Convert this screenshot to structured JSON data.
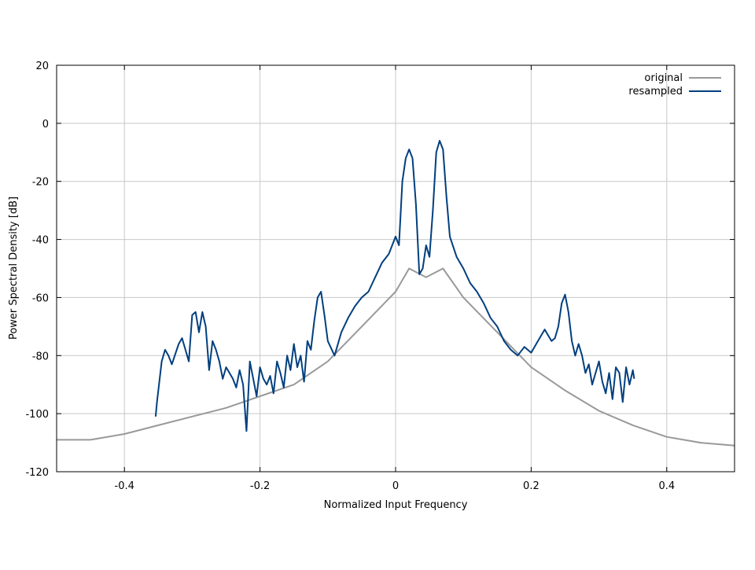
{
  "chart_data": {
    "type": "line",
    "title": "",
    "xlabel": "Normalized Input Frequency",
    "ylabel": "Power Spectral Density [dB]",
    "xlim": [
      -0.5,
      0.5
    ],
    "ylim": [
      -120,
      20
    ],
    "xticks": [
      -0.4,
      -0.2,
      0,
      0.2,
      0.4
    ],
    "xtick_labels": [
      "-0.4",
      "-0.2",
      "0",
      "0.2",
      "0.4"
    ],
    "yticks": [
      -120,
      -100,
      -80,
      -60,
      -40,
      -20,
      0,
      20
    ],
    "ytick_labels": [
      "-120",
      "-100",
      "-80",
      "-60",
      "-40",
      "-20",
      "0",
      "20"
    ],
    "grid": true,
    "legend_position": "top-right",
    "series": [
      {
        "name": "original",
        "color": "#999999",
        "x": [
          -0.5,
          -0.45,
          -0.4,
          -0.35,
          -0.3,
          -0.25,
          -0.2,
          -0.15,
          -0.1,
          -0.05,
          0.0,
          0.02,
          0.045,
          0.07,
          0.1,
          0.15,
          0.2,
          0.25,
          0.3,
          0.35,
          0.4,
          0.45,
          0.5
        ],
        "y": [
          -109,
          -109,
          -107,
          -104,
          -101,
          -98,
          -94,
          -90,
          -82,
          -70,
          -58,
          -50,
          -53,
          -50,
          -60,
          -72,
          -84,
          -92,
          -99,
          -104,
          -108,
          -110,
          -111
        ]
      },
      {
        "name": "resampled",
        "color": "#003f7f",
        "x": [
          -0.354,
          -0.352,
          -0.345,
          -0.34,
          -0.335,
          -0.33,
          -0.32,
          -0.315,
          -0.31,
          -0.305,
          -0.3,
          -0.295,
          -0.29,
          -0.285,
          -0.28,
          -0.275,
          -0.27,
          -0.265,
          -0.26,
          -0.255,
          -0.25,
          -0.245,
          -0.24,
          -0.235,
          -0.23,
          -0.225,
          -0.22,
          -0.215,
          -0.21,
          -0.205,
          -0.2,
          -0.195,
          -0.19,
          -0.185,
          -0.18,
          -0.175,
          -0.17,
          -0.165,
          -0.16,
          -0.155,
          -0.15,
          -0.145,
          -0.14,
          -0.135,
          -0.13,
          -0.125,
          -0.12,
          -0.115,
          -0.11,
          -0.105,
          -0.1,
          -0.09,
          -0.08,
          -0.07,
          -0.06,
          -0.05,
          -0.04,
          -0.03,
          -0.02,
          -0.01,
          0.0,
          0.005,
          0.01,
          0.015,
          0.02,
          0.025,
          0.03,
          0.035,
          0.04,
          0.045,
          0.05,
          0.055,
          0.06,
          0.065,
          0.07,
          0.075,
          0.08,
          0.09,
          0.1,
          0.11,
          0.12,
          0.13,
          0.14,
          0.15,
          0.16,
          0.17,
          0.18,
          0.19,
          0.2,
          0.21,
          0.22,
          0.225,
          0.23,
          0.235,
          0.24,
          0.245,
          0.25,
          0.255,
          0.26,
          0.265,
          0.27,
          0.275,
          0.28,
          0.285,
          0.29,
          0.295,
          0.3,
          0.305,
          0.31,
          0.315,
          0.32,
          0.325,
          0.33,
          0.335,
          0.34,
          0.345,
          0.35,
          0.352
        ],
        "y": [
          -101,
          -96,
          -82,
          -78,
          -80,
          -83,
          -76,
          -74,
          -78,
          -82,
          -66,
          -65,
          -72,
          -65,
          -70,
          -85,
          -75,
          -78,
          -82,
          -88,
          -84,
          -86,
          -88,
          -91,
          -85,
          -90,
          -106,
          -82,
          -88,
          -94,
          -84,
          -88,
          -90,
          -87,
          -93,
          -82,
          -86,
          -91,
          -80,
          -85,
          -76,
          -84,
          -80,
          -89,
          -75,
          -78,
          -68,
          -60,
          -58,
          -66,
          -75,
          -80,
          -72,
          -67,
          -63,
          -60,
          -58,
          -53,
          -48,
          -45,
          -39,
          -42,
          -20,
          -12,
          -9,
          -12,
          -28,
          -52,
          -50,
          -42,
          -46,
          -30,
          -10,
          -6,
          -9,
          -25,
          -39,
          -46,
          -50,
          -55,
          -58,
          -62,
          -67,
          -70,
          -75,
          -78,
          -80,
          -77,
          -79,
          -75,
          -71,
          -73,
          -75,
          -74,
          -70,
          -62,
          -59,
          -65,
          -75,
          -80,
          -76,
          -80,
          -86,
          -83,
          -90,
          -86,
          -82,
          -89,
          -93,
          -86,
          -95,
          -84,
          -86,
          -96,
          -84,
          -90,
          -85,
          -88
        ]
      }
    ]
  }
}
